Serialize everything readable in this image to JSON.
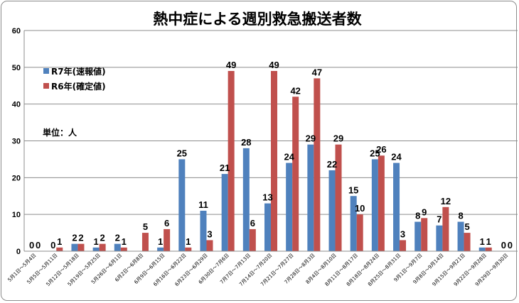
{
  "chart_data": {
    "type": "bar",
    "title": "熱中症による週別救急搬送者数",
    "unit_label": "単位：人",
    "ylim": [
      0,
      60
    ],
    "yticks": [
      0,
      10,
      20,
      30,
      40,
      50,
      60
    ],
    "grid": true,
    "legend_position": "top-left",
    "categories": [
      "5月1日～5月4日",
      "5月5日～5月11日",
      "5月12日～5月18日",
      "5月19日～5月25日",
      "5月26日～6月1日",
      "6月2日～6月8日",
      "6月9日～6月15日",
      "6月16日～6月22日",
      "6月23日～6月29日",
      "6月30日～7月6日",
      "7月7日～7月13日",
      "7月14日～7月20日",
      "7月21日～7月27日",
      "7月28日～8月3日",
      "8月4日～8月10日",
      "8月11日～8月17日",
      "8月18日～8月24日",
      "8月25日～8月31日",
      "9月1日～9月7日",
      "9月8日～9月14日",
      "9月15日～9月21日",
      "9月22日～9月28日",
      "9月29日～9月30日"
    ],
    "series": [
      {
        "name": "R7年(速報値)",
        "color": "#4f81bd",
        "values": [
          0,
          0,
          2,
          1,
          2,
          null,
          1,
          25,
          11,
          21,
          28,
          13,
          24,
          29,
          22,
          15,
          25,
          24,
          8,
          7,
          8,
          1,
          0
        ]
      },
      {
        "name": "R6年(確定値)",
        "color": "#c0504d",
        "values": [
          0,
          1,
          2,
          2,
          1,
          5,
          6,
          1,
          3,
          49,
          6,
          49,
          42,
          47,
          29,
          10,
          26,
          3,
          9,
          12,
          5,
          1,
          0
        ]
      }
    ]
  }
}
